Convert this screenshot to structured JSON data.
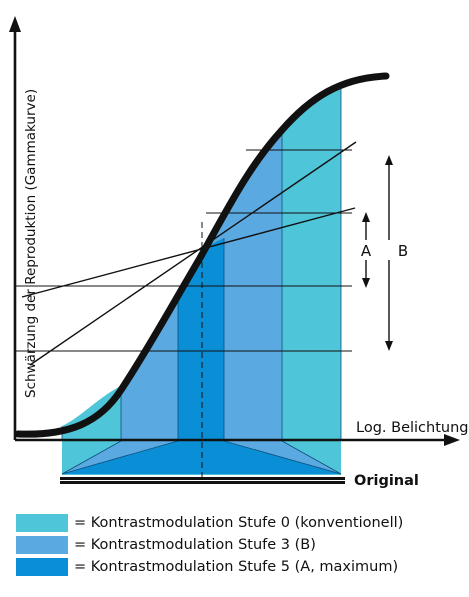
{
  "diagram": {
    "y_axis_label": "Schwärzung der Reproduktion (Gammakurve)",
    "x_axis_label": "Log. Belichtung",
    "original_label": "Original",
    "marker_a": "A",
    "marker_b": "B"
  },
  "colors": {
    "stufe0": "#4ec5d8",
    "stufe3": "#5aa9e0",
    "stufe5": "#0a8fd6",
    "line": "#111111"
  },
  "legend": {
    "items": [
      {
        "text": "= Kontrastmodulation Stufe 0 (konventionell)",
        "color_key": "stufe0"
      },
      {
        "text": "= Kontrastmodulation Stufe 3 (B)",
        "color_key": "stufe3"
      },
      {
        "text": "= Kontrastmodulation Stufe 5 (A, maximum)",
        "color_key": "stufe5"
      }
    ]
  }
}
